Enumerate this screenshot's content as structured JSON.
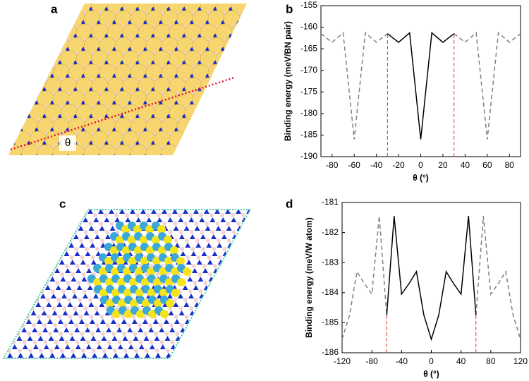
{
  "images": [
    {
      "panel": "a",
      "angle_label": "θ"
    },
    {
      "panel": "c"
    }
  ],
  "chart_data": [
    {
      "type": "line",
      "panel": "b",
      "xlabel": "θ (°)",
      "ylabel": "Binding energy (meV/BN pair)",
      "x": [
        -90,
        -80,
        -70,
        -60,
        -50,
        -40,
        -30,
        -20,
        -10,
        0,
        10,
        20,
        30,
        40,
        50,
        60,
        70,
        80,
        90
      ],
      "series": [
        {
          "color": "#808080",
          "dashed": true,
          "values": [
            -161.5,
            -163.5,
            -161.3,
            -186,
            -161.3,
            -163.5,
            -161.5,
            null,
            null,
            null,
            null,
            null,
            -161.5,
            -163.5,
            -161.3,
            -186,
            -161.3,
            -163.5,
            -161.5
          ]
        },
        {
          "color": "#000000",
          "dashed": false,
          "values": [
            null,
            null,
            null,
            null,
            null,
            null,
            -161.5,
            -163.5,
            -161.3,
            -186,
            -161.3,
            -163.5,
            -161.5,
            null,
            null,
            null,
            null,
            null,
            null
          ]
        }
      ],
      "vlines": {
        "color": "#e0302c",
        "x": [
          -30,
          30
        ]
      },
      "xlim": [
        -90,
        90
      ],
      "xticks": [
        -80,
        -60,
        -40,
        -20,
        0,
        20,
        40,
        60,
        80
      ],
      "ylim": [
        -190,
        -155
      ],
      "yticks": [
        -190,
        -185,
        -180,
        -175,
        -170,
        -165,
        -160,
        -155
      ]
    },
    {
      "type": "line",
      "panel": "d",
      "xlabel": "θ (°)",
      "ylabel": "Binding energy (meV/W atom)",
      "x": [
        -120,
        -110,
        -100,
        -90,
        -80,
        -70,
        -60,
        -50,
        -40,
        -30,
        -20,
        -10,
        0,
        10,
        20,
        30,
        40,
        50,
        60,
        70,
        80,
        90,
        100,
        110,
        120
      ],
      "series": [
        {
          "color": "#808080",
          "dashed": true,
          "values": [
            -185.55,
            -184.75,
            -183.3,
            -183.7,
            -184.05,
            -181.45,
            -184.75,
            null,
            null,
            null,
            null,
            null,
            null,
            null,
            null,
            null,
            null,
            null,
            -184.75,
            -181.45,
            -184.05,
            -183.7,
            -183.3,
            -184.75,
            -185.55
          ]
        },
        {
          "color": "#000000",
          "dashed": false,
          "values": [
            null,
            null,
            null,
            null,
            null,
            null,
            -184.75,
            -181.45,
            -184.05,
            -183.7,
            -183.3,
            -184.75,
            -185.55,
            -184.75,
            -183.3,
            -183.7,
            -184.05,
            -181.45,
            -184.75,
            null,
            null,
            null,
            null,
            null,
            null
          ]
        }
      ],
      "vlines": {
        "color": "#e0302c",
        "x": [
          -60,
          60
        ]
      },
      "xlim": [
        -120,
        120
      ],
      "xticks": [
        -120,
        -80,
        -40,
        0,
        40,
        80,
        120
      ],
      "ylim": [
        -186,
        -181
      ],
      "yticks": [
        -186,
        -185,
        -184,
        -183,
        -182,
        -181
      ]
    }
  ]
}
